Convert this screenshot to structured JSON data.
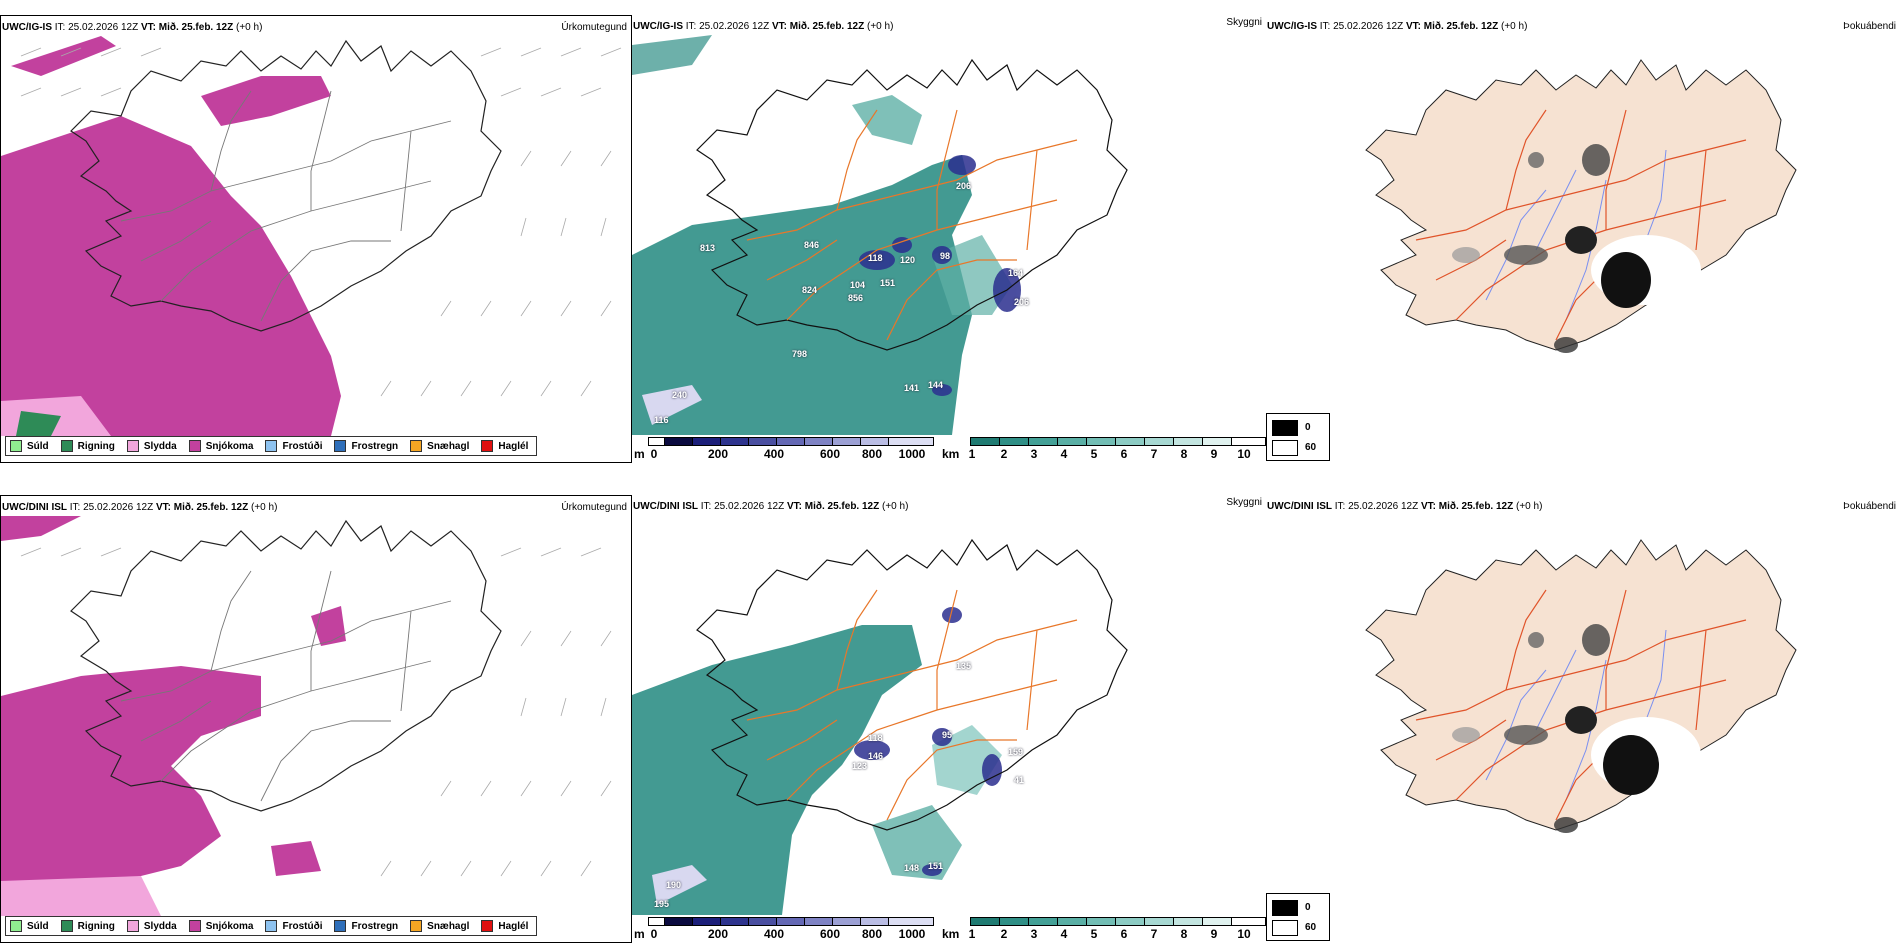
{
  "colors": {
    "sudl": "#90ee90",
    "rigning": "#2e8b57",
    "slydda": "#f2a6dc",
    "snjokoma": "#c2419e",
    "frostudi": "#8ec3f0",
    "frostregn": "#2f6fba",
    "snaehagl": "#f5a623",
    "haglel": "#e01010",
    "cloud_teal": "#2f8f86",
    "land": "#f6e2d2",
    "roads": "#e8772a",
    "rivers": "#7a8ff0"
  },
  "rows": [
    {
      "precip": {
        "title_model": "UWC/IG-IS",
        "title_it_label": "IT:",
        "title_it": "25.02.2026 12Z",
        "title_vt_label": "VT:",
        "title_vt": "Mið. 25.feb. 12Z",
        "title_offset": "(+0 h)",
        "right_title": "Úrkomutegund"
      },
      "cloud": {
        "title_model": "UWC/IG-IS",
        "title_it_label": "IT:",
        "title_it": "25.02.2026 12Z",
        "title_vt_label": "VT:",
        "title_vt": "Mið. 25.feb. 12Z",
        "title_offset": "(+0 h)",
        "right_title": "Skyggni",
        "labels": [
          "813",
          "846",
          "118",
          "120",
          "98",
          "104",
          "151",
          "824",
          "856",
          "164",
          "206",
          "798",
          "141",
          "144",
          "206",
          "116",
          "240"
        ]
      },
      "fog": {
        "title_model": "UWC/IG-IS",
        "title_it_label": "IT:",
        "title_it": "25.02.2026 12Z",
        "title_vt_label": "VT:",
        "title_vt": "Mið. 25.feb. 12Z",
        "title_offset": "(+0 h)",
        "right_title": "Þokuábendi"
      }
    },
    {
      "precip": {
        "title_model": "UWC/DINI ISL",
        "title_it_label": "IT:",
        "title_it": "25.02.2026 12Z",
        "title_vt_label": "VT:",
        "title_vt": "Mið. 25.feb. 12Z",
        "title_offset": "(+0 h)",
        "right_title": "Úrkomutegund"
      },
      "cloud": {
        "title_model": "UWC/DINI ISL",
        "title_it_label": "IT:",
        "title_it": "25.02.2026 12Z",
        "title_vt_label": "VT:",
        "title_vt": "Mið. 25.feb. 12Z",
        "title_offset": "(+0 h)",
        "right_title": "Skyggni",
        "labels": [
          "118",
          "146",
          "123",
          "95",
          "159",
          "41",
          "135",
          "148",
          "151",
          "190",
          "195"
        ]
      },
      "fog": {
        "title_model": "UWC/DINI ISL",
        "title_it_label": "IT:",
        "title_it": "25.02.2026 12Z",
        "title_vt_label": "VT:",
        "title_vt": "Mið. 25.feb. 12Z",
        "title_offset": "(+0 h)",
        "right_title": "Þokuábendi"
      }
    }
  ],
  "precip_legend": [
    "Súld",
    "Rigning",
    "Slydda",
    "Snjókoma",
    "Frostúði",
    "Frostregn",
    "Snæhagl",
    "Haglél"
  ],
  "cloud_base_bar": {
    "unit": "m",
    "ticks": [
      "0",
      "200",
      "400",
      "600",
      "800",
      "1000"
    ]
  },
  "visibility_bar": {
    "unit": "km",
    "ticks": [
      "1",
      "2",
      "3",
      "4",
      "5",
      "6",
      "7",
      "8",
      "9",
      "10"
    ]
  },
  "fog_legend": {
    "low": "0",
    "high": "60"
  }
}
